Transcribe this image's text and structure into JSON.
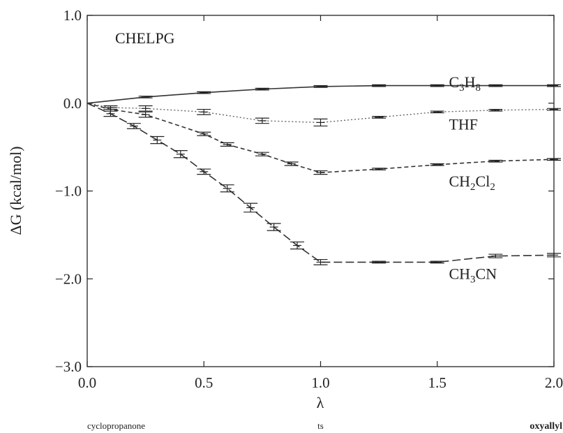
{
  "chart_data": {
    "type": "line",
    "title": "",
    "annotation": "CHELPG",
    "xlabel": "λ",
    "ylabel": "ΔG (kcal/mol)",
    "xlim": [
      0.0,
      2.0
    ],
    "ylim": [
      -3.0,
      1.0
    ],
    "x_ticks": [
      "0.0",
      "0.5",
      "1.0",
      "1.5",
      "2.0"
    ],
    "y_ticks": [
      "1.0",
      "0.0",
      "−1.0",
      "−2.0",
      "−3.0"
    ],
    "grid": false,
    "states": [
      {
        "x": 0.0,
        "label": "cyclopropanone"
      },
      {
        "x": 1.0,
        "label": "ts"
      },
      {
        "x": 2.0,
        "label": "oxyallyl"
      }
    ],
    "series": [
      {
        "name_parts": [
          {
            "t": "C"
          },
          {
            "t": "3",
            "sub": true
          },
          {
            "t": "H"
          },
          {
            "t": "8",
            "sub": true
          }
        ],
        "label_at": [
          1.55,
          0.18
        ],
        "color": "#333333",
        "style": "solid",
        "x": [
          0.0,
          0.25,
          0.5,
          0.75,
          1.0,
          1.25,
          1.5,
          1.75,
          2.0
        ],
        "y": [
          0.0,
          0.07,
          0.12,
          0.16,
          0.19,
          0.2,
          0.2,
          0.2,
          0.2
        ],
        "err": [
          0.0,
          0.01,
          0.01,
          0.01,
          0.01,
          0.01,
          0.01,
          0.01,
          0.01
        ]
      },
      {
        "name_parts": [
          {
            "t": "THF"
          }
        ],
        "label_at": [
          1.55,
          -0.3
        ],
        "color": "#666666",
        "style": "dotted",
        "x": [
          0.0,
          0.1,
          0.25,
          0.5,
          0.75,
          1.0,
          1.25,
          1.5,
          1.75,
          2.0
        ],
        "y": [
          0.0,
          -0.05,
          -0.06,
          -0.1,
          -0.2,
          -0.22,
          -0.16,
          -0.1,
          -0.08,
          -0.07
        ],
        "err": [
          0.0,
          0.02,
          0.03,
          0.03,
          0.03,
          0.04,
          0.01,
          0.01,
          0.01,
          0.01
        ]
      },
      {
        "name_parts": [
          {
            "t": "CH"
          },
          {
            "t": "2",
            "sub": true
          },
          {
            "t": "Cl"
          },
          {
            "t": "2",
            "sub": true
          }
        ],
        "label_at": [
          1.55,
          -0.95
        ],
        "color": "#333333",
        "style": "dashed",
        "x": [
          0.0,
          0.1,
          0.25,
          0.5,
          0.6,
          0.75,
          0.875,
          1.0,
          1.25,
          1.5,
          1.75,
          2.0
        ],
        "y": [
          0.0,
          -0.07,
          -0.13,
          -0.35,
          -0.47,
          -0.58,
          -0.69,
          -0.79,
          -0.75,
          -0.7,
          -0.66,
          -0.64
        ],
        "err": [
          0.0,
          0.02,
          0.03,
          0.02,
          0.02,
          0.02,
          0.02,
          0.02,
          0.01,
          0.01,
          0.01,
          0.01
        ]
      },
      {
        "name_parts": [
          {
            "t": "CH"
          },
          {
            "t": "3",
            "sub": true
          },
          {
            "t": "CN"
          }
        ],
        "label_at": [
          1.55,
          -2.0
        ],
        "color": "#333333",
        "style": "longdash",
        "x": [
          0.0,
          0.1,
          0.2,
          0.3,
          0.4,
          0.5,
          0.6,
          0.7,
          0.8,
          0.9,
          1.0,
          1.25,
          1.5,
          1.75,
          2.0
        ],
        "y": [
          0.0,
          -0.12,
          -0.26,
          -0.42,
          -0.58,
          -0.78,
          -0.97,
          -1.19,
          -1.41,
          -1.62,
          -1.81,
          -1.81,
          -1.81,
          -1.74,
          -1.73
        ],
        "err": [
          0.0,
          0.03,
          0.03,
          0.04,
          0.04,
          0.03,
          0.04,
          0.05,
          0.04,
          0.04,
          0.03,
          0.01,
          0.01,
          0.02,
          0.02
        ]
      }
    ]
  }
}
